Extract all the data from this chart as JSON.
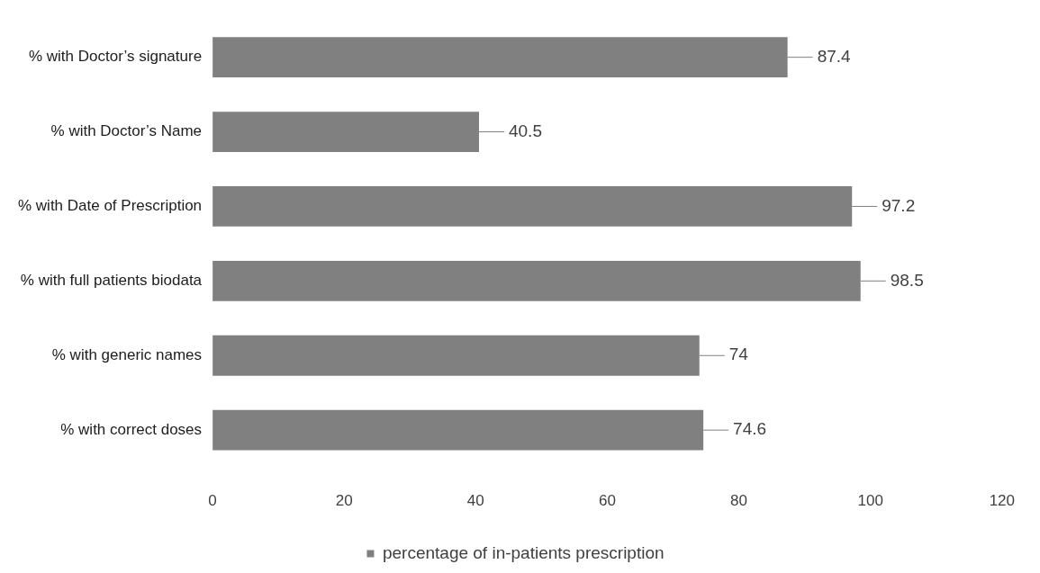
{
  "chart_data": {
    "type": "bar",
    "orientation": "horizontal",
    "categories": [
      "% with Doctor’s signature",
      "% with Doctor’s Name",
      "% with Date of Prescription",
      "% with full patients biodata",
      "% with generic names",
      "% with correct doses"
    ],
    "series": [
      {
        "name": "percentage of in-patients prescription",
        "color": "#808080",
        "values": [
          87.4,
          40.5,
          97.2,
          98.5,
          74,
          74.6
        ]
      }
    ],
    "xlim": [
      0,
      120
    ],
    "xticks": [
      0,
      20,
      40,
      60,
      80,
      100,
      120
    ],
    "data_labels": true,
    "grid": false,
    "legend": "bottom"
  }
}
